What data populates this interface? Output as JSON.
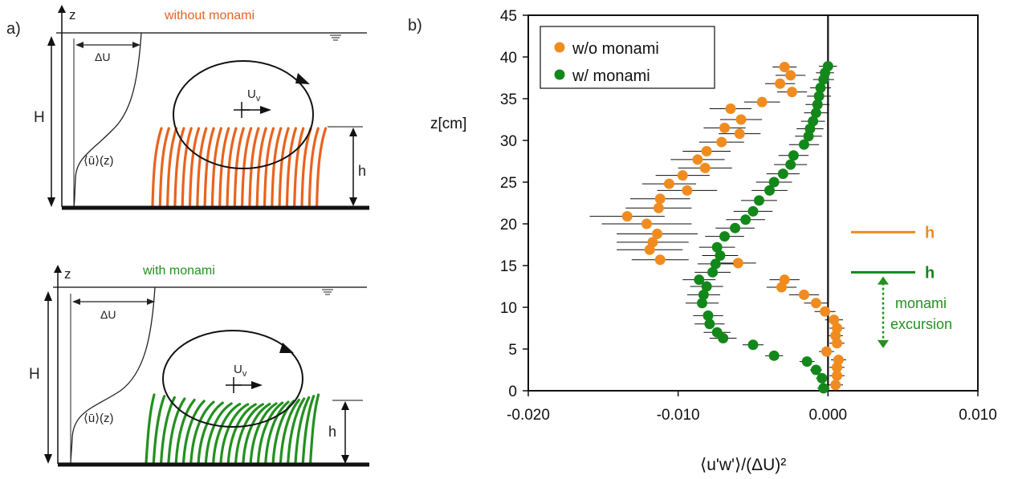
{
  "panel_a": {
    "label": "a)",
    "top": {
      "title": "without monami",
      "z_label": "z",
      "du_label": "ΔU",
      "H_label": "H",
      "h_label": "h",
      "profile_label": "⟨ū⟩(z)",
      "uv_main": "U",
      "uv_sub": "v"
    },
    "bottom": {
      "title": "with monami",
      "z_label": "z",
      "du_label": "ΔU",
      "H_label": "H",
      "h_label": "h",
      "profile_label": "⟨ū⟩(z)",
      "uv_main": "U",
      "uv_sub": "v"
    },
    "colors": {
      "without": "#e8631e",
      "with": "#23901f"
    }
  },
  "panel_b": {
    "label": "b)"
  },
  "chart_data": {
    "type": "scatter",
    "ylabel": "z[cm]",
    "xlabel": "⟨u'w'⟩/(ΔU)²",
    "xlim": [
      -0.02,
      0.01
    ],
    "ylim": [
      0,
      45
    ],
    "x_ticks": [
      -0.02,
      -0.01,
      0.0,
      0.01
    ],
    "x_tick_labels": [
      "-0.020",
      "-0.010",
      "0.000",
      "0.010"
    ],
    "y_ticks": [
      0,
      5,
      10,
      15,
      20,
      25,
      30,
      35,
      40,
      45
    ],
    "legend_position": "top-left",
    "series": [
      {
        "name": "w/o monami",
        "color": "#f08c1f",
        "points": [
          [
            0.0005,
            0.7
          ],
          [
            0.0006,
            1.8
          ],
          [
            0.0006,
            2.8
          ],
          [
            0.0007,
            3.7
          ],
          [
            -0.0001,
            4.7
          ],
          [
            0.0006,
            5.7
          ],
          [
            0.0005,
            6.6
          ],
          [
            0.0006,
            7.5
          ],
          [
            0.0004,
            8.5
          ],
          [
            -0.0002,
            9.5
          ],
          [
            -0.0008,
            10.5
          ],
          [
            -0.0016,
            11.5
          ],
          [
            -0.0031,
            12.4
          ],
          [
            -0.0029,
            13.3
          ],
          [
            -0.006,
            15.3
          ],
          [
            -0.0112,
            15.7
          ],
          [
            -0.0119,
            16.9
          ],
          [
            -0.0117,
            17.8
          ],
          [
            -0.0114,
            18.8
          ],
          [
            -0.0121,
            20.0
          ],
          [
            -0.0134,
            20.9
          ],
          [
            -0.0113,
            21.9
          ],
          [
            -0.0112,
            23.0
          ],
          [
            -0.0094,
            24.0
          ],
          [
            -0.0106,
            24.8
          ],
          [
            -0.0097,
            25.8
          ],
          [
            -0.0082,
            26.7
          ],
          [
            -0.0087,
            27.7
          ],
          [
            -0.0081,
            28.7
          ],
          [
            -0.0071,
            29.8
          ],
          [
            -0.0059,
            30.8
          ],
          [
            -0.0069,
            31.5
          ],
          [
            -0.0058,
            32.5
          ],
          [
            -0.0065,
            33.8
          ],
          [
            -0.0044,
            34.6
          ],
          [
            -0.0024,
            35.8
          ],
          [
            -0.0032,
            36.8
          ],
          [
            -0.0025,
            37.8
          ],
          [
            -0.0029,
            38.8
          ]
        ],
        "errors": [
          0.0005,
          0.0005,
          0.0005,
          0.0005,
          0.0005,
          0.0005,
          0.0005,
          0.0005,
          0.0006,
          0.0007,
          0.0008,
          0.001,
          0.001,
          0.001,
          0.0012,
          0.0019,
          0.0022,
          0.0024,
          0.0027,
          0.003,
          0.0025,
          0.0022,
          0.002,
          0.002,
          0.0018,
          0.0018,
          0.0018,
          0.0018,
          0.0016,
          0.0015,
          0.0014,
          0.0014,
          0.0014,
          0.0014,
          0.0012,
          0.001,
          0.001,
          0.001,
          0.0008
        ]
      },
      {
        "name": "w/ monami",
        "color": "#13881a",
        "points": [
          [
            -0.0003,
            0.3
          ],
          [
            -0.0004,
            1.5
          ],
          [
            -0.0008,
            2.5
          ],
          [
            -0.0014,
            3.5
          ],
          [
            -0.0036,
            4.2
          ],
          [
            -0.005,
            5.5
          ],
          [
            -0.007,
            6.3
          ],
          [
            -0.0074,
            7.0
          ],
          [
            -0.0079,
            8.0
          ],
          [
            -0.008,
            9.0
          ],
          [
            -0.0084,
            10.5
          ],
          [
            -0.0083,
            11.5
          ],
          [
            -0.0081,
            12.5
          ],
          [
            -0.0086,
            13.3
          ],
          [
            -0.0077,
            14.2
          ],
          [
            -0.0075,
            15.2
          ],
          [
            -0.0072,
            16.2
          ],
          [
            -0.0074,
            17.2
          ],
          [
            -0.0069,
            18.5
          ],
          [
            -0.0062,
            19.5
          ],
          [
            -0.0055,
            20.5
          ],
          [
            -0.005,
            21.5
          ],
          [
            -0.0046,
            22.8
          ],
          [
            -0.0039,
            24.0
          ],
          [
            -0.0036,
            25.0
          ],
          [
            -0.003,
            26.0
          ],
          [
            -0.0025,
            27.1
          ],
          [
            -0.0023,
            28.2
          ],
          [
            -0.0016,
            29.5
          ],
          [
            -0.0013,
            30.5
          ],
          [
            -0.0012,
            31.4
          ],
          [
            -0.001,
            32.3
          ],
          [
            -0.0008,
            33.3
          ],
          [
            -0.0007,
            34.3
          ],
          [
            -0.0006,
            35.3
          ],
          [
            -0.0005,
            36.3
          ],
          [
            -0.0003,
            37.3
          ],
          [
            -0.0002,
            38.1
          ],
          [
            0.0,
            38.9
          ]
        ],
        "errors": [
          0.0004,
          0.0004,
          0.0004,
          0.0005,
          0.0006,
          0.0007,
          0.0009,
          0.0009,
          0.001,
          0.001,
          0.0011,
          0.0011,
          0.0011,
          0.0011,
          0.0012,
          0.0012,
          0.0012,
          0.0012,
          0.0013,
          0.0013,
          0.0013,
          0.0013,
          0.0012,
          0.0012,
          0.0012,
          0.0011,
          0.0011,
          0.001,
          0.001,
          0.0009,
          0.0009,
          0.0008,
          0.0008,
          0.0008,
          0.0008,
          0.0007,
          0.0007,
          0.0006,
          0.0006
        ]
      }
    ],
    "annotations": {
      "h_without": {
        "label": "h",
        "z": 19.0,
        "color": "#f08c1f"
      },
      "h_with": {
        "label": "h",
        "z": 14.2,
        "color": "#13881a"
      },
      "excursion": {
        "line1": "monami",
        "line2": "excursion",
        "z_top": 13.5,
        "z_bottom": 5.3,
        "color": "#23901f"
      }
    }
  }
}
